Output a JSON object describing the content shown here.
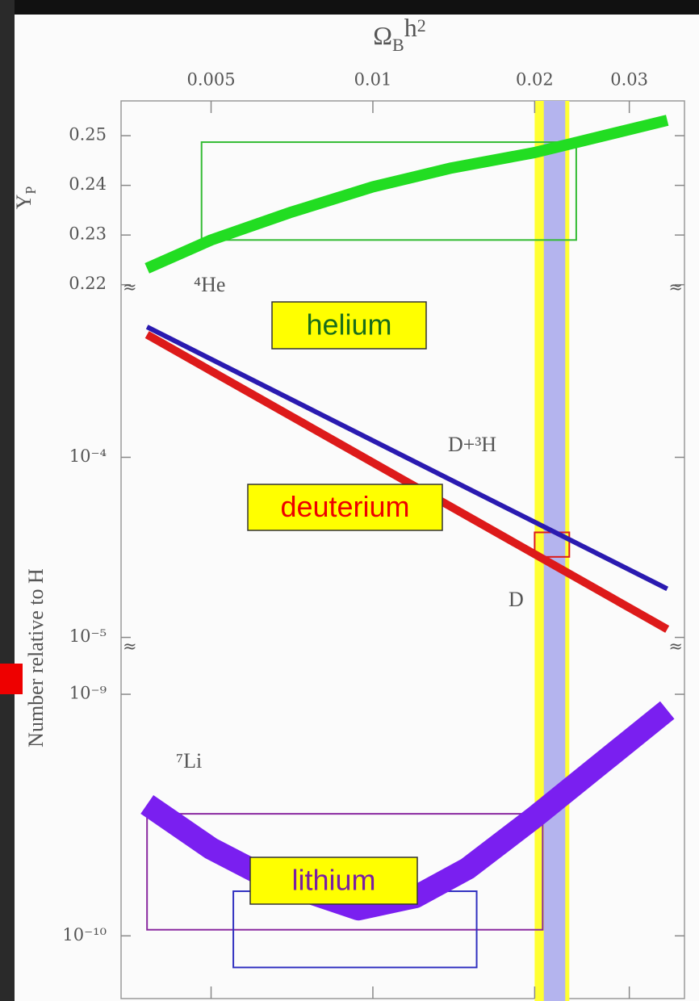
{
  "chart_data": [
    {
      "type": "line",
      "x_label": [
        "Ω",
        "B",
        "h",
        "2"
      ],
      "y_label": [
        "Y",
        "P"
      ],
      "xscale": "log",
      "xlim": [
        0.0034,
        0.038
      ],
      "xticks": [
        0.005,
        0.01,
        0.02,
        0.03
      ],
      "yscale": "linear",
      "ylim": [
        0.218,
        0.257
      ],
      "yticks": [
        0.22,
        0.23,
        0.24,
        0.25
      ],
      "series": [
        {
          "name": "⁴He",
          "color": "#22dd22",
          "x": [
            0.0038,
            0.005,
            0.007,
            0.01,
            0.014,
            0.02,
            0.0353
          ],
          "values": [
            0.2233,
            0.229,
            0.2345,
            0.2397,
            0.2435,
            0.2466,
            0.2531
          ]
        }
      ],
      "boxes": [
        {
          "color": "#33bb33",
          "xlim": [
            0.0048,
            0.0239
          ],
          "ylim": [
            0.229,
            0.2487
          ]
        }
      ],
      "bands": [
        {
          "color": "#ffff33",
          "xlim": [
            0.02,
            0.0232
          ]
        },
        {
          "color": "#b4b4ee",
          "xlim": [
            0.0208,
            0.0228
          ]
        }
      ],
      "callout": {
        "text": "helium",
        "color": "#1a6e1a"
      }
    },
    {
      "type": "line",
      "y_label": "Number relative to H",
      "xscale": "log",
      "xlim": [
        0.0034,
        0.038
      ],
      "yscale": "log",
      "ylim": [
        8.1e-06,
        0.00076
      ],
      "yticks": [
        {
          "value": 0.0001,
          "label": "10⁻⁴"
        },
        {
          "value": 1e-05,
          "label": "10⁻⁵"
        }
      ],
      "series": [
        {
          "name": "D+³H",
          "color": "#2a1ab0",
          "x": [
            0.0038,
            0.0353
          ],
          "values": [
            0.00053,
            1.86e-05
          ]
        },
        {
          "name": "D",
          "color": "#dd1a1a",
          "x": [
            0.0038,
            0.0353
          ],
          "values": [
            0.00048,
            1.11e-05
          ]
        }
      ],
      "boxes": [
        {
          "color": "#dd1a1a",
          "xlim": [
            0.02,
            0.0232
          ],
          "ylim": [
            2.8e-05,
            3.83e-05
          ]
        }
      ],
      "callout": {
        "text": "deuterium",
        "color": "#ee0000"
      }
    },
    {
      "type": "line",
      "xscale": "log",
      "xlim": [
        0.0034,
        0.038
      ],
      "yscale": "log",
      "ylim": [
        5.5e-11,
        1.26e-09
      ],
      "yticks": [
        {
          "value": 1e-09,
          "label": "10⁻⁹"
        },
        {
          "value": 1e-10,
          "label": "10⁻¹⁰"
        }
      ],
      "series": [
        {
          "name": "⁷Li",
          "color": "#7a1ff0",
          "x": [
            0.0038,
            0.005,
            0.0065,
            0.0094,
            0.012,
            0.015,
            0.02,
            0.0353
          ],
          "values": [
            3.5e-10,
            2.3e-10,
            1.7e-10,
            1.29e-10,
            1.45e-10,
            1.9e-10,
            3.1e-10,
            8.6e-10
          ]
        }
      ],
      "boxes": [
        {
          "color": "#8a2aa0",
          "xlim": [
            0.0038,
            0.0207
          ],
          "ylim": [
            1.06e-10,
            3.2e-10
          ]
        },
        {
          "color": "#3030c0",
          "xlim": [
            0.0055,
            0.0156
          ],
          "ylim": [
            7.4e-11,
            1.53e-10
          ]
        }
      ],
      "callout": {
        "text": "lithium",
        "color": "#7a1fa2"
      }
    }
  ]
}
